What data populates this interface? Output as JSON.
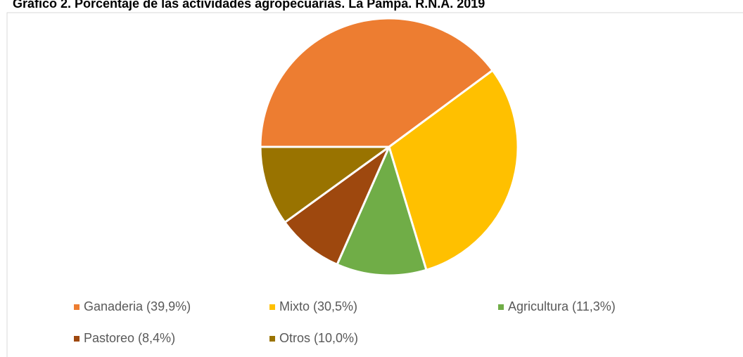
{
  "chart_data": {
    "type": "pie",
    "title": "Gráfico 2. Porcentaje de las actividades agropecuarias. La Pampa. R.N.A. 2019",
    "categories": [
      "Ganaderia (39,9%)",
      "Mixto (30,5%)",
      "Agricultura (11,3%)",
      "Pastoreo (8,4%)",
      "Otros (10,0%)"
    ],
    "values": [
      39.9,
      30.5,
      11.3,
      8.4,
      10.0
    ],
    "colors": [
      "#ed7d31",
      "#ffc000",
      "#70ad47",
      "#9e480e",
      "#997300"
    ],
    "legend": "bottom"
  }
}
